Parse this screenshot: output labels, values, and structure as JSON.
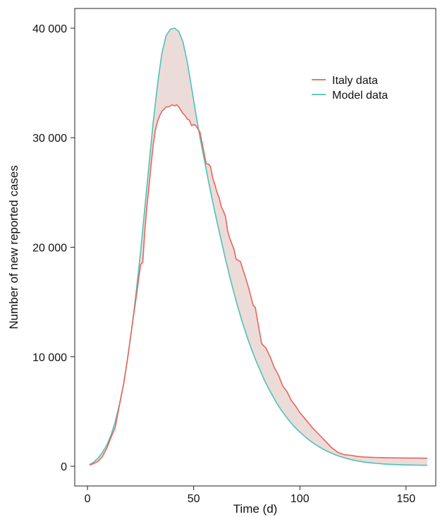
{
  "chart_data": {
    "type": "line",
    "xlabel": "Time (d)",
    "ylabel": "Number of new reported cases",
    "xlim": [
      -6,
      164
    ],
    "ylim": [
      -1800,
      41800
    ],
    "x_ticks": [
      0,
      50,
      100,
      150
    ],
    "x_tick_labels": [
      "0",
      "50",
      "100",
      "150"
    ],
    "y_ticks": [
      0,
      10000,
      20000,
      30000,
      40000
    ],
    "y_tick_labels": [
      "0",
      "10 000",
      "20 000",
      "30 000",
      "40 000"
    ],
    "legend_position": "top-right",
    "shaded_area_between_series": true,
    "fill_color": "#ecdcd9",
    "series": [
      {
        "name": "Italy data",
        "color": "#e8655a",
        "x": [
          1,
          3,
          5,
          7,
          9,
          11,
          13,
          15,
          17,
          19,
          21,
          23,
          25,
          26,
          27,
          28,
          29,
          30,
          31,
          32,
          33,
          34,
          35,
          36,
          37,
          38,
          39,
          40,
          41,
          42,
          43,
          44,
          45,
          46,
          47,
          48,
          49,
          50,
          51,
          52,
          53,
          54,
          55,
          56,
          57,
          58,
          59,
          60,
          61,
          62,
          63,
          64,
          65,
          66,
          67,
          68,
          69,
          70,
          72,
          74,
          76,
          78,
          79,
          80,
          82,
          84,
          86,
          88,
          90,
          92,
          94,
          96,
          98,
          100,
          103,
          106,
          109,
          112,
          115,
          118,
          121,
          124,
          127,
          130,
          135,
          140,
          145,
          150,
          155,
          160
        ],
        "values": [
          100,
          250,
          450,
          900,
          1600,
          2600,
          3500,
          5500,
          7500,
          10000,
          12800,
          15500,
          18400,
          18600,
          21500,
          23800,
          25600,
          27600,
          29400,
          30700,
          31500,
          32000,
          32400,
          32600,
          32800,
          32800,
          32900,
          33000,
          32900,
          33000,
          32800,
          32500,
          32200,
          32000,
          31700,
          31600,
          31100,
          31200,
          31100,
          30800,
          30500,
          29500,
          28500,
          27600,
          27600,
          27300,
          26300,
          25700,
          25000,
          24500,
          23700,
          23300,
          22800,
          21500,
          20800,
          20300,
          19800,
          18900,
          18700,
          17500,
          16200,
          14700,
          14500,
          13400,
          11200,
          10800,
          10000,
          9000,
          8300,
          7300,
          6800,
          6000,
          5500,
          4900,
          4200,
          3500,
          2900,
          2300,
          1700,
          1250,
          1050,
          1000,
          900,
          850,
          800,
          780,
          760,
          750,
          750,
          730
        ]
      },
      {
        "name": "Model data",
        "color": "#4cc2b8",
        "x": [
          1,
          3,
          5,
          7,
          9,
          11,
          13,
          15,
          17,
          19,
          21,
          23,
          25,
          27,
          29,
          31,
          33,
          35,
          37,
          39,
          41,
          43,
          45,
          47,
          49,
          51,
          53,
          55,
          57,
          59,
          61,
          63,
          65,
          67,
          69,
          71,
          73,
          75,
          77,
          79,
          81,
          83,
          85,
          87,
          89,
          91,
          93,
          95,
          97,
          99,
          101,
          103,
          105,
          108,
          111,
          114,
          117,
          120,
          124,
          128,
          132,
          136,
          140,
          145,
          150,
          155,
          160
        ],
        "values": [
          150,
          390,
          750,
          1250,
          1900,
          2800,
          4000,
          5600,
          7500,
          10000,
          12800,
          16000,
          19600,
          23600,
          27600,
          31500,
          34900,
          37700,
          39300,
          39900,
          40000,
          39700,
          38700,
          36900,
          34600,
          32200,
          30000,
          28000,
          26000,
          24100,
          22300,
          20600,
          18900,
          17300,
          15800,
          14400,
          13100,
          11900,
          10800,
          9800,
          8900,
          8000,
          7200,
          6500,
          5800,
          5200,
          4650,
          4150,
          3700,
          3300,
          2950,
          2600,
          2300,
          1900,
          1550,
          1270,
          1030,
          830,
          610,
          450,
          340,
          260,
          200,
          150,
          120,
          100,
          90
        ]
      }
    ]
  }
}
